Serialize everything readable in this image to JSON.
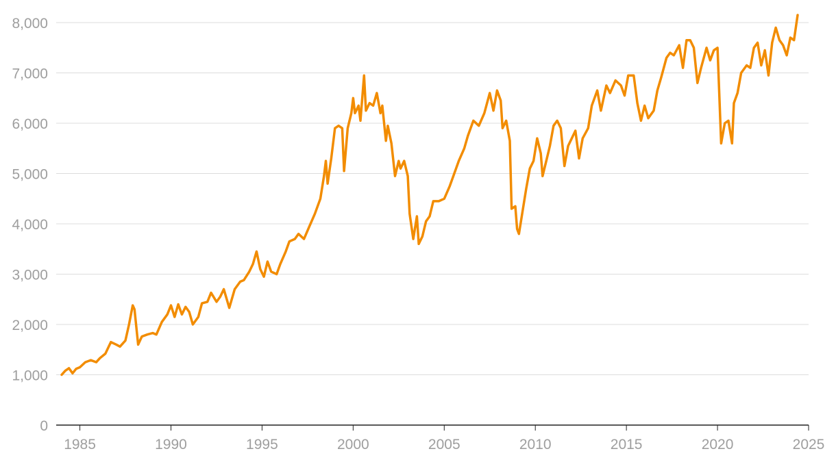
{
  "chart_data": {
    "type": "line",
    "title": "",
    "xlabel": "",
    "ylabel": "",
    "xlim": [
      1983.7,
      2025
    ],
    "ylim": [
      0,
      8000
    ],
    "x_ticks": [
      1985,
      1990,
      1995,
      2000,
      2005,
      2010,
      2015,
      2020,
      2025
    ],
    "x_tick_labels": [
      "1985",
      "1990",
      "1995",
      "2000",
      "2005",
      "2010",
      "2015",
      "2020",
      "2025"
    ],
    "y_ticks": [
      0,
      1000,
      2000,
      3000,
      4000,
      5000,
      6000,
      7000,
      8000
    ],
    "y_tick_labels": [
      "0",
      "1,000",
      "2,000",
      "3,000",
      "4,000",
      "5,000",
      "6,000",
      "7,000",
      "8,000"
    ],
    "grid": true,
    "legend": "none",
    "colors": {
      "line": "#f28c00",
      "grid": "#dcdcdc",
      "axis": "#222222",
      "tick_text": "#9e9e9e"
    },
    "series": [
      {
        "values": [
          [
            1984.0,
            1000
          ],
          [
            1984.2,
            1080
          ],
          [
            1984.4,
            1130
          ],
          [
            1984.6,
            1030
          ],
          [
            1984.8,
            1120
          ],
          [
            1985.0,
            1150
          ],
          [
            1985.3,
            1250
          ],
          [
            1985.6,
            1290
          ],
          [
            1985.9,
            1250
          ],
          [
            1986.1,
            1330
          ],
          [
            1986.4,
            1420
          ],
          [
            1986.7,
            1650
          ],
          [
            1987.0,
            1600
          ],
          [
            1987.2,
            1560
          ],
          [
            1987.5,
            1680
          ],
          [
            1987.7,
            2000
          ],
          [
            1987.9,
            2380
          ],
          [
            1988.0,
            2300
          ],
          [
            1988.2,
            1600
          ],
          [
            1988.4,
            1760
          ],
          [
            1988.7,
            1800
          ],
          [
            1989.0,
            1830
          ],
          [
            1989.2,
            1800
          ],
          [
            1989.5,
            2050
          ],
          [
            1989.8,
            2200
          ],
          [
            1990.0,
            2380
          ],
          [
            1990.2,
            2150
          ],
          [
            1990.4,
            2400
          ],
          [
            1990.6,
            2200
          ],
          [
            1990.8,
            2350
          ],
          [
            1991.0,
            2250
          ],
          [
            1991.2,
            2000
          ],
          [
            1991.5,
            2150
          ],
          [
            1991.7,
            2420
          ],
          [
            1992.0,
            2450
          ],
          [
            1992.2,
            2630
          ],
          [
            1992.5,
            2450
          ],
          [
            1992.7,
            2550
          ],
          [
            1992.9,
            2700
          ],
          [
            1993.2,
            2330
          ],
          [
            1993.5,
            2700
          ],
          [
            1993.8,
            2850
          ],
          [
            1994.0,
            2880
          ],
          [
            1994.3,
            3050
          ],
          [
            1994.5,
            3200
          ],
          [
            1994.7,
            3450
          ],
          [
            1994.9,
            3100
          ],
          [
            1995.1,
            2950
          ],
          [
            1995.3,
            3250
          ],
          [
            1995.5,
            3050
          ],
          [
            1995.8,
            3000
          ],
          [
            1996.0,
            3200
          ],
          [
            1996.3,
            3450
          ],
          [
            1996.5,
            3650
          ],
          [
            1996.8,
            3700
          ],
          [
            1997.0,
            3800
          ],
          [
            1997.3,
            3700
          ],
          [
            1997.6,
            3950
          ],
          [
            1997.9,
            4200
          ],
          [
            1998.2,
            4500
          ],
          [
            1998.4,
            4950
          ],
          [
            1998.5,
            5250
          ],
          [
            1998.6,
            4800
          ],
          [
            1998.8,
            5300
          ],
          [
            1999.0,
            5900
          ],
          [
            1999.2,
            5950
          ],
          [
            1999.4,
            5900
          ],
          [
            1999.5,
            5050
          ],
          [
            1999.7,
            5900
          ],
          [
            1999.9,
            6200
          ],
          [
            2000.0,
            6500
          ],
          [
            2000.1,
            6200
          ],
          [
            2000.3,
            6350
          ],
          [
            2000.4,
            6050
          ],
          [
            2000.6,
            6950
          ],
          [
            2000.7,
            6250
          ],
          [
            2000.9,
            6400
          ],
          [
            2001.1,
            6350
          ],
          [
            2001.3,
            6600
          ],
          [
            2001.5,
            6200
          ],
          [
            2001.6,
            6350
          ],
          [
            2001.8,
            5650
          ],
          [
            2001.9,
            5950
          ],
          [
            2002.1,
            5600
          ],
          [
            2002.3,
            4950
          ],
          [
            2002.5,
            5250
          ],
          [
            2002.6,
            5100
          ],
          [
            2002.8,
            5250
          ],
          [
            2003.0,
            4950
          ],
          [
            2003.1,
            4200
          ],
          [
            2003.3,
            3700
          ],
          [
            2003.5,
            4150
          ],
          [
            2003.6,
            3600
          ],
          [
            2003.8,
            3750
          ],
          [
            2004.0,
            4050
          ],
          [
            2004.2,
            4150
          ],
          [
            2004.4,
            4450
          ],
          [
            2004.7,
            4450
          ],
          [
            2005.0,
            4500
          ],
          [
            2005.3,
            4750
          ],
          [
            2005.5,
            4950
          ],
          [
            2005.8,
            5250
          ],
          [
            2006.1,
            5500
          ],
          [
            2006.3,
            5750
          ],
          [
            2006.6,
            6050
          ],
          [
            2006.9,
            5950
          ],
          [
            2007.2,
            6200
          ],
          [
            2007.5,
            6600
          ],
          [
            2007.7,
            6250
          ],
          [
            2007.9,
            6650
          ],
          [
            2008.1,
            6450
          ],
          [
            2008.2,
            5900
          ],
          [
            2008.4,
            6050
          ],
          [
            2008.6,
            5650
          ],
          [
            2008.7,
            4300
          ],
          [
            2008.9,
            4350
          ],
          [
            2009.0,
            3900
          ],
          [
            2009.1,
            3800
          ],
          [
            2009.3,
            4250
          ],
          [
            2009.5,
            4700
          ],
          [
            2009.7,
            5100
          ],
          [
            2009.9,
            5250
          ],
          [
            2010.1,
            5700
          ],
          [
            2010.3,
            5400
          ],
          [
            2010.4,
            4950
          ],
          [
            2010.6,
            5250
          ],
          [
            2010.8,
            5550
          ],
          [
            2011.0,
            5950
          ],
          [
            2011.2,
            6050
          ],
          [
            2011.4,
            5900
          ],
          [
            2011.6,
            5150
          ],
          [
            2011.8,
            5550
          ],
          [
            2012.0,
            5700
          ],
          [
            2012.2,
            5850
          ],
          [
            2012.4,
            5300
          ],
          [
            2012.6,
            5700
          ],
          [
            2012.9,
            5900
          ],
          [
            2013.1,
            6350
          ],
          [
            2013.4,
            6650
          ],
          [
            2013.6,
            6250
          ],
          [
            2013.9,
            6750
          ],
          [
            2014.1,
            6600
          ],
          [
            2014.4,
            6850
          ],
          [
            2014.7,
            6750
          ],
          [
            2014.9,
            6550
          ],
          [
            2015.1,
            6950
          ],
          [
            2015.4,
            6950
          ],
          [
            2015.6,
            6400
          ],
          [
            2015.8,
            6050
          ],
          [
            2016.0,
            6350
          ],
          [
            2016.2,
            6100
          ],
          [
            2016.5,
            6250
          ],
          [
            2016.7,
            6650
          ],
          [
            2016.9,
            6900
          ],
          [
            2017.2,
            7300
          ],
          [
            2017.4,
            7400
          ],
          [
            2017.6,
            7350
          ],
          [
            2017.9,
            7550
          ],
          [
            2018.1,
            7100
          ],
          [
            2018.3,
            7650
          ],
          [
            2018.5,
            7650
          ],
          [
            2018.7,
            7500
          ],
          [
            2018.9,
            6800
          ],
          [
            2019.1,
            7100
          ],
          [
            2019.4,
            7500
          ],
          [
            2019.6,
            7250
          ],
          [
            2019.8,
            7450
          ],
          [
            2020.0,
            7500
          ],
          [
            2020.2,
            5600
          ],
          [
            2020.4,
            6000
          ],
          [
            2020.6,
            6050
          ],
          [
            2020.8,
            5600
          ],
          [
            2020.9,
            6400
          ],
          [
            2021.1,
            6600
          ],
          [
            2021.3,
            7000
          ],
          [
            2021.6,
            7150
          ],
          [
            2021.8,
            7100
          ],
          [
            2022.0,
            7500
          ],
          [
            2022.2,
            7600
          ],
          [
            2022.4,
            7150
          ],
          [
            2022.6,
            7450
          ],
          [
            2022.8,
            6950
          ],
          [
            2023.0,
            7600
          ],
          [
            2023.2,
            7900
          ],
          [
            2023.4,
            7650
          ],
          [
            2023.6,
            7550
          ],
          [
            2023.8,
            7350
          ],
          [
            2024.0,
            7700
          ],
          [
            2024.2,
            7650
          ],
          [
            2024.4,
            8150
          ]
        ]
      }
    ]
  }
}
